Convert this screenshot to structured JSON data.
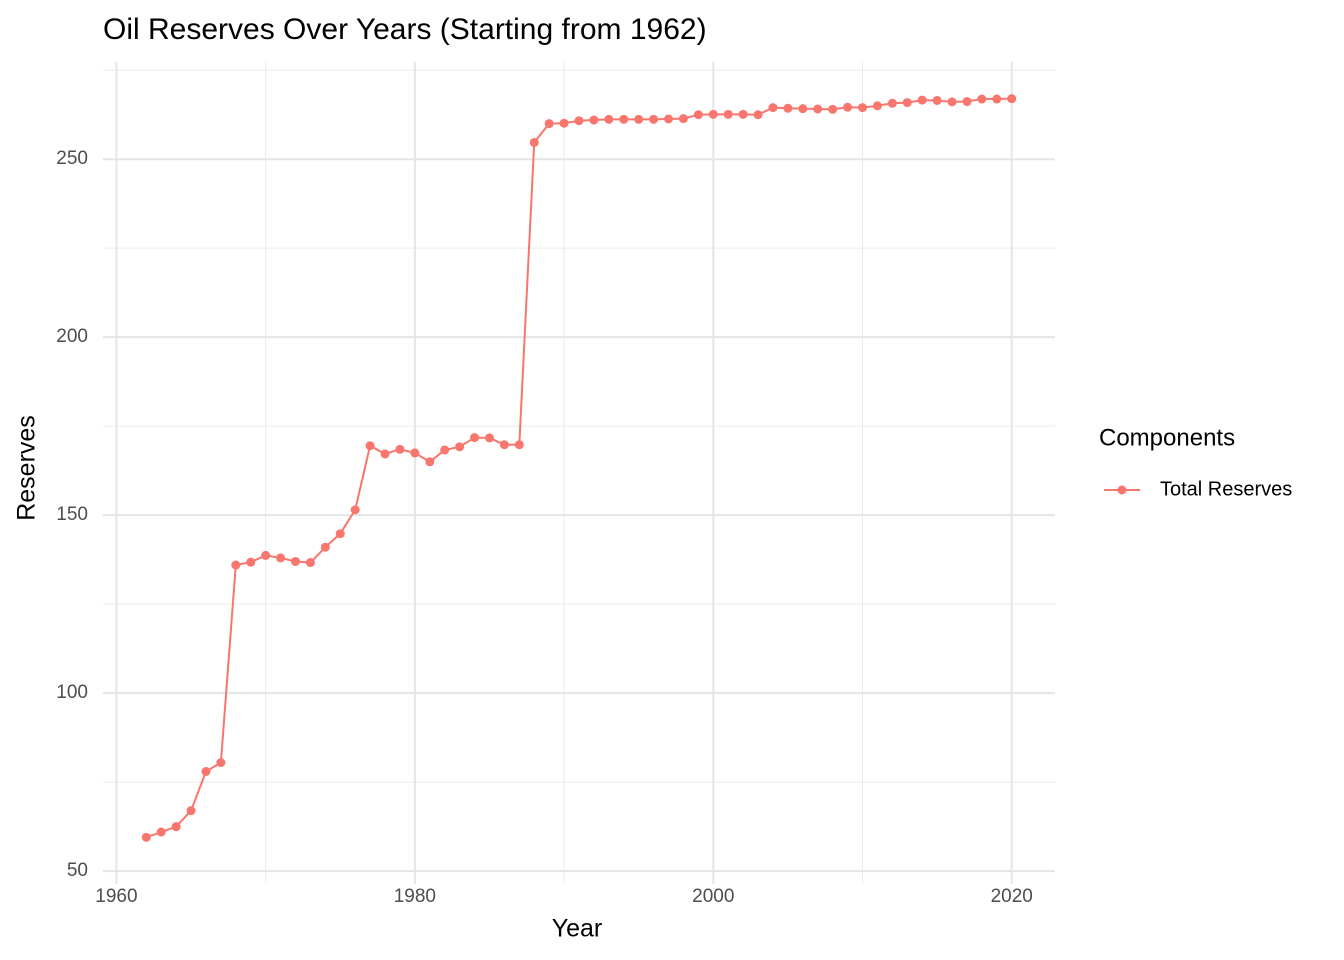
{
  "chart_data": {
    "type": "line",
    "title": "Oil Reserves Over Years (Starting from 1962)",
    "x_label": "Year",
    "y_label": "Reserves",
    "x": [
      1962,
      1963,
      1964,
      1965,
      1966,
      1967,
      1968,
      1969,
      1970,
      1971,
      1972,
      1973,
      1974,
      1975,
      1976,
      1977,
      1978,
      1979,
      1980,
      1981,
      1982,
      1983,
      1984,
      1985,
      1986,
      1987,
      1988,
      1989,
      1990,
      1991,
      1992,
      1993,
      1994,
      1995,
      1996,
      1997,
      1998,
      1999,
      2000,
      2001,
      2002,
      2003,
      2004,
      2005,
      2006,
      2007,
      2008,
      2009,
      2010,
      2011,
      2012,
      2013,
      2014,
      2015,
      2016,
      2017,
      2018,
      2019,
      2020
    ],
    "series": [
      {
        "name": "Total Reserves",
        "color": "#F8766D",
        "values": [
          59.5,
          61.0,
          62.5,
          67.0,
          78.0,
          80.5,
          136.0,
          136.8,
          138.7,
          138.0,
          137.0,
          136.7,
          141.0,
          144.8,
          151.5,
          169.5,
          167.2,
          168.5,
          167.5,
          165.0,
          168.3,
          169.2,
          171.8,
          171.7,
          169.8,
          169.8,
          254.7,
          260.0,
          260.1,
          260.8,
          261.0,
          261.2,
          261.2,
          261.2,
          261.2,
          261.3,
          261.4,
          262.5,
          262.6,
          262.6,
          262.6,
          262.5,
          264.5,
          264.3,
          264.2,
          264.1,
          264.0,
          264.6,
          264.5,
          265.0,
          265.7,
          265.9,
          266.6,
          266.5,
          266.1,
          266.2,
          266.9,
          266.9,
          267.0
        ]
      }
    ],
    "xlim": [
      1959.1,
      2022.9
    ],
    "ylim": [
      46.4,
      277.3
    ],
    "xticks": [
      1960,
      1980,
      2000,
      2020
    ],
    "yticks": [
      50,
      100,
      150,
      200,
      250
    ],
    "x_minor_ticks": [
      1970,
      1990,
      2010
    ],
    "y_minor_ticks": [
      75,
      125,
      175,
      225,
      275
    ],
    "grid": true,
    "legend_title": "Components",
    "legend": "right"
  }
}
